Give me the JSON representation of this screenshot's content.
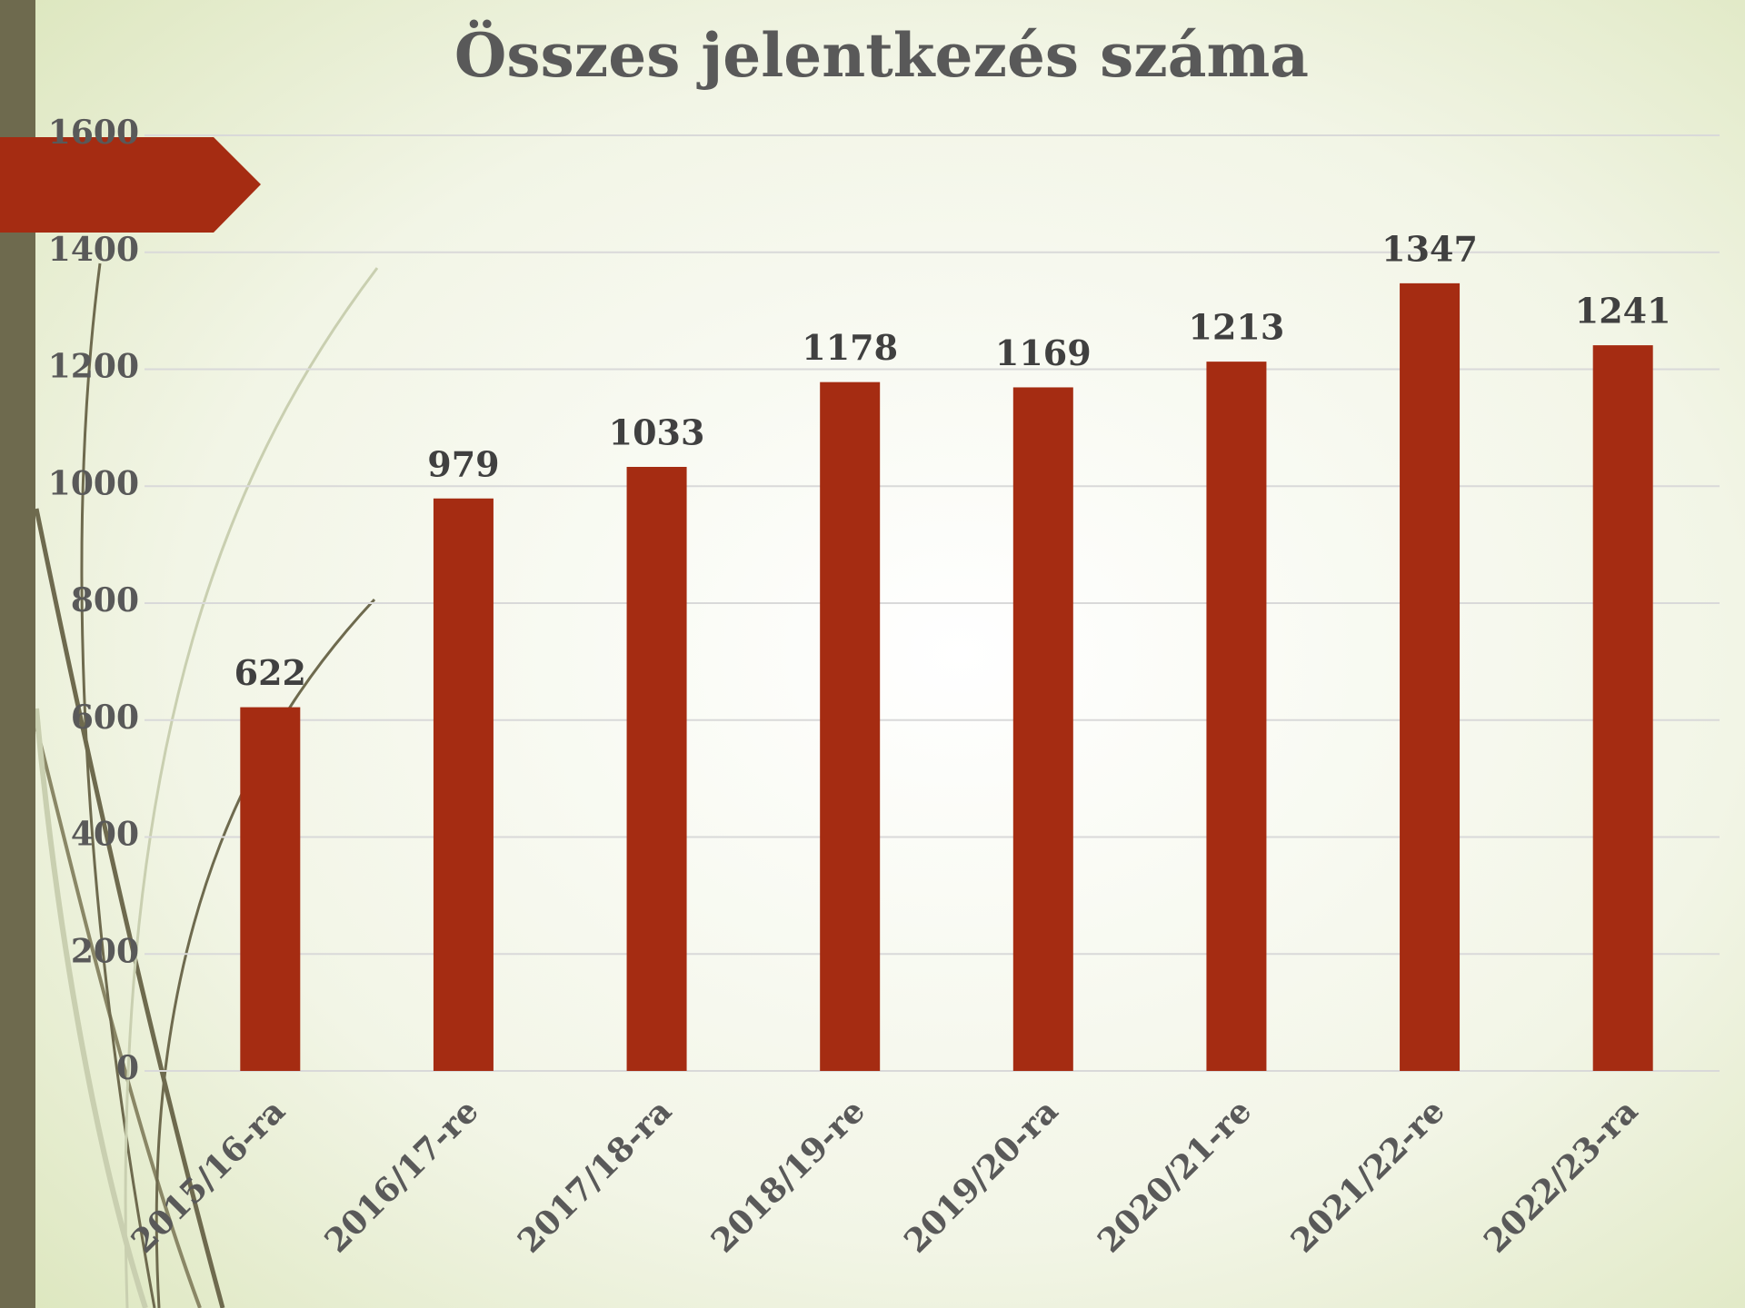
{
  "chart_data": {
    "type": "bar",
    "title": "Összes jelentkezés száma",
    "categories": [
      "2015/16-ra",
      "2016/17-re",
      "2017/18-ra",
      "2018/19-re",
      "2019/20-ra",
      "2020/21-re",
      "2021/22-re",
      "2022/23-ra"
    ],
    "values": [
      622,
      979,
      1033,
      1178,
      1169,
      1213,
      1347,
      1241
    ],
    "color": "#a52c12",
    "ylim": [
      0,
      1600
    ],
    "yticks": [
      0,
      200,
      400,
      600,
      800,
      1000,
      1200,
      1400,
      1600
    ],
    "grid": true
  }
}
